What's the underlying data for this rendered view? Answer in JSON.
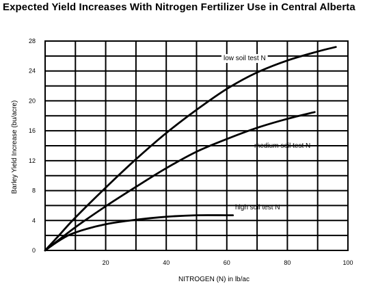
{
  "chart_data": {
    "type": "line",
    "title": "Expected Yield Increases With Nitrogen Fertilizer  Use in Central Alberta",
    "xlabel": "NITROGEN  (N) in lb/ac",
    "ylabel": "Barley Yield Increase (bu/acre)",
    "xlim": [
      0,
      100
    ],
    "ylim": [
      0,
      28
    ],
    "xticks": [
      20,
      40,
      60,
      80,
      100
    ],
    "yticks": [
      0,
      4,
      8,
      12,
      16,
      20,
      24,
      28
    ],
    "grid": true,
    "series": [
      {
        "name": "low soil test N",
        "x": [
          0,
          5,
          10,
          20,
          30,
          40,
          50,
          60,
          70,
          80,
          90,
          96
        ],
        "y": [
          0,
          2.2,
          4.4,
          8.4,
          12.2,
          15.7,
          18.8,
          21.6,
          23.8,
          25.4,
          26.6,
          27.2
        ]
      },
      {
        "name": "medium soil test N",
        "x": [
          0,
          10,
          20,
          30,
          40,
          50,
          60,
          70,
          80,
          89
        ],
        "y": [
          0,
          3.1,
          5.9,
          8.5,
          11.0,
          13.2,
          14.9,
          16.4,
          17.6,
          18.5
        ]
      },
      {
        "name": "high soil test N",
        "x": [
          0,
          5,
          10,
          20,
          30,
          40,
          50,
          60,
          62
        ],
        "y": [
          0,
          1.4,
          2.4,
          3.5,
          4.1,
          4.5,
          4.7,
          4.7,
          4.7
        ]
      }
    ]
  }
}
